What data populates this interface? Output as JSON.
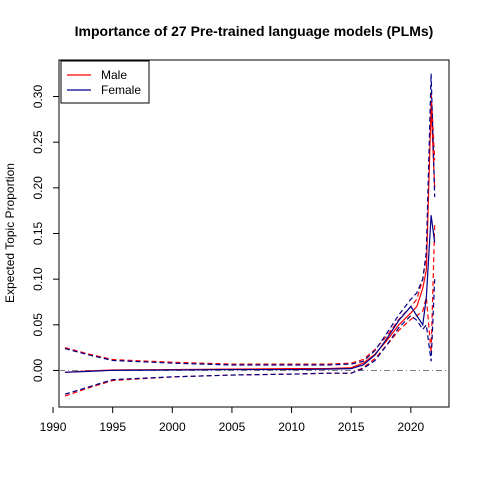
{
  "chart_data": {
    "type": "line",
    "title": "Importance of 27 Pre-trained language models (PLMs)",
    "xlabel": "",
    "ylabel": "Expected Topic Proportion",
    "xlim": [
      1990.5,
      2023.2
    ],
    "ylim": [
      -0.04,
      0.34
    ],
    "xticks": [
      1990,
      1995,
      2000,
      2005,
      2010,
      2015,
      2020
    ],
    "yticks": [
      0.0,
      0.05,
      0.1,
      0.15,
      0.2,
      0.25,
      0.3
    ],
    "ytick_labels": [
      "0.00",
      "0.05",
      "0.10",
      "0.15",
      "0.20",
      "0.25",
      "0.30"
    ],
    "reference_line": {
      "y": 0,
      "style": "dash-dot",
      "color": "#808080"
    },
    "legend": {
      "position": "top-left",
      "entries": [
        "Male",
        "Female"
      ]
    },
    "series": [
      {
        "name": "Male",
        "color": "#ff0000",
        "x": [
          1991.0,
          1993.0,
          1995.0,
          2000.0,
          2005.0,
          2010.0,
          2013.0,
          2015.0,
          2016.0,
          2017.0,
          2018.0,
          2019.0,
          2020.0,
          2020.5,
          2021.0,
          2021.3,
          2021.7,
          2022.0
        ],
        "mean": [
          -0.002,
          -0.0005,
          0.0005,
          0.001,
          0.0015,
          0.002,
          0.002,
          0.003,
          0.008,
          0.018,
          0.033,
          0.05,
          0.063,
          0.07,
          0.09,
          0.11,
          0.29,
          0.2
        ],
        "upper": [
          0.025,
          0.018,
          0.012,
          0.009,
          0.007,
          0.007,
          0.007,
          0.008,
          0.012,
          0.023,
          0.038,
          0.056,
          0.07,
          0.078,
          0.1,
          0.125,
          0.305,
          0.23
        ],
        "lower": [
          -0.028,
          -0.019,
          -0.011,
          -0.007,
          -0.005,
          -0.004,
          -0.003,
          -0.003,
          0.003,
          0.013,
          0.028,
          0.044,
          0.056,
          0.06,
          0.065,
          0.08,
          0.02,
          0.16
        ]
      },
      {
        "name": "Female",
        "color": "#00008b",
        "x": [
          1991.0,
          1993.0,
          1995.0,
          2000.0,
          2005.0,
          2010.0,
          2013.0,
          2015.0,
          2016.0,
          2017.0,
          2018.0,
          2019.0,
          2020.0,
          2020.5,
          2021.0,
          2021.3,
          2021.7,
          2022.0
        ],
        "mean": [
          -0.002,
          -0.001,
          0.0002,
          0.0005,
          0.001,
          0.001,
          0.0015,
          0.002,
          0.006,
          0.017,
          0.035,
          0.055,
          0.07,
          0.06,
          0.05,
          0.08,
          0.17,
          0.14
        ],
        "upper": [
          0.024,
          0.017,
          0.011,
          0.008,
          0.006,
          0.006,
          0.006,
          0.007,
          0.01,
          0.022,
          0.041,
          0.061,
          0.078,
          0.085,
          0.1,
          0.13,
          0.325,
          0.19
        ],
        "lower": [
          -0.026,
          -0.018,
          -0.01,
          -0.007,
          -0.005,
          -0.004,
          -0.003,
          -0.003,
          0.002,
          0.011,
          0.028,
          0.047,
          0.06,
          0.055,
          0.045,
          0.05,
          0.01,
          0.1
        ]
      }
    ]
  }
}
